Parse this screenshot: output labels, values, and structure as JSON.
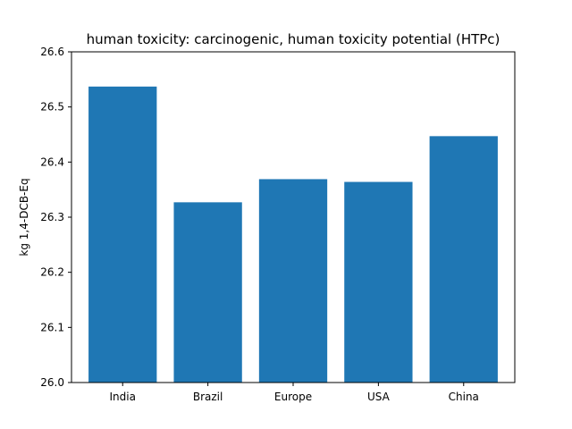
{
  "chart_data": {
    "type": "bar",
    "title": "human toxicity: carcinogenic, human toxicity potential (HTPc)",
    "xlabel": "",
    "ylabel": "kg 1,4-DCB-Eq",
    "categories": [
      "India",
      "Brazil",
      "Europe",
      "USA",
      "China"
    ],
    "values": [
      26.537,
      26.327,
      26.369,
      26.364,
      26.447
    ],
    "ylim": [
      26.0,
      26.6
    ],
    "yticks": [
      "26.0",
      "26.1",
      "26.2",
      "26.3",
      "26.4",
      "26.5",
      "26.6"
    ],
    "grid": false,
    "legend": "none",
    "bar_color": "#1f77b4"
  }
}
